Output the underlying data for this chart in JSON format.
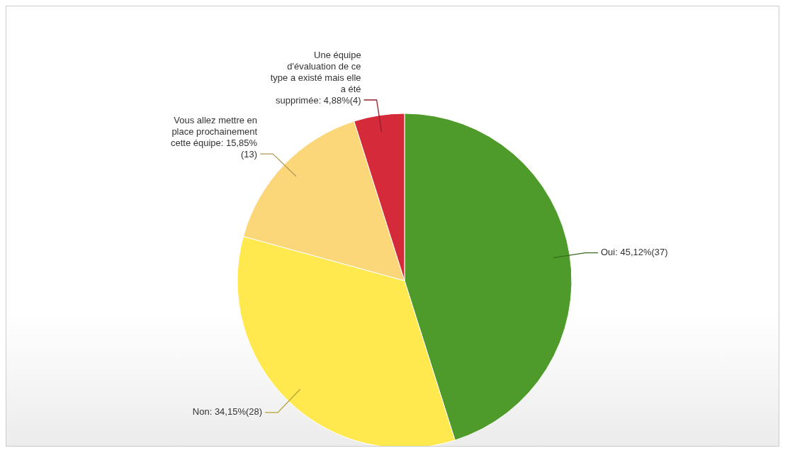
{
  "chart_data": {
    "type": "pie",
    "categories": [
      "Oui",
      "Non",
      "Vous allez mettre en place prochainement cette équipe",
      "Une équipe d'évaluation de ce type a existé mais elle a été supprimée"
    ],
    "values": [
      37,
      28,
      13,
      4
    ],
    "value_labels": [
      "45,12%(37)",
      "34,15%(28)",
      "15,85%(13)",
      "4,88%(4)"
    ],
    "colors": [
      "#4e9a2a",
      "#ffe94f",
      "#fcd77a",
      "#d42a3a"
    ]
  }
}
